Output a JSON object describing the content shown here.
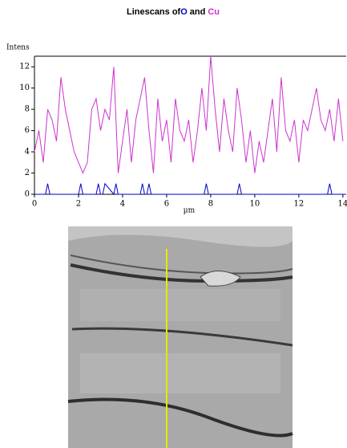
{
  "chart_data": {
    "type": "line",
    "title": "Linescans of",
    "title_conjunction": "and",
    "y_label": "Intens",
    "x_label": "µm",
    "xlim": [
      0,
      14.15
    ],
    "ylim": [
      0,
      13
    ],
    "xticks": [
      0,
      2,
      4,
      6,
      8,
      10,
      12,
      14
    ],
    "yticks": [
      0,
      2,
      4,
      6,
      8,
      10,
      12
    ],
    "series": [
      {
        "name": "O",
        "color": "#0000cc",
        "x": [
          0,
          0.5,
          0.6,
          0.7,
          2.0,
          2.1,
          2.2,
          2.8,
          2.9,
          3.0,
          3.1,
          3.2,
          3.6,
          3.7,
          3.8,
          4.8,
          4.9,
          5.0,
          5.1,
          5.2,
          5.3,
          7.7,
          7.8,
          7.9,
          9.2,
          9.3,
          9.4,
          13.3,
          13.4,
          13.5,
          14.15
        ],
        "values": [
          0,
          0,
          1,
          0,
          0,
          1,
          0,
          0,
          1,
          0,
          0,
          1,
          0,
          1,
          0,
          0,
          1,
          0,
          0,
          1,
          0,
          0,
          1,
          0,
          0,
          1,
          0,
          0,
          1,
          0,
          0
        ]
      },
      {
        "name": "Cu",
        "color": "#cc33cc",
        "x": [
          0,
          0.2,
          0.4,
          0.6,
          0.8,
          1.0,
          1.2,
          1.4,
          1.6,
          1.8,
          2.0,
          2.2,
          2.4,
          2.6,
          2.8,
          3.0,
          3.2,
          3.4,
          3.6,
          3.8,
          4.0,
          4.2,
          4.4,
          4.6,
          4.8,
          5.0,
          5.2,
          5.4,
          5.6,
          5.8,
          6.0,
          6.2,
          6.4,
          6.6,
          6.8,
          7.0,
          7.2,
          7.4,
          7.6,
          7.8,
          8.0,
          8.2,
          8.4,
          8.6,
          8.8,
          9.0,
          9.2,
          9.4,
          9.6,
          9.8,
          10.0,
          10.2,
          10.4,
          10.6,
          10.8,
          11.0,
          11.2,
          11.4,
          11.6,
          11.8,
          12.0,
          12.2,
          12.4,
          12.6,
          12.8,
          13.0,
          13.2,
          13.4,
          13.6,
          13.8,
          14.0
        ],
        "values": [
          4,
          6,
          3,
          8,
          7,
          5,
          11,
          8,
          6,
          4,
          3,
          2,
          3,
          8,
          9,
          6,
          8,
          7,
          12,
          2,
          5,
          8,
          3,
          7,
          9,
          11,
          6,
          2,
          9,
          5,
          7,
          3,
          9,
          6,
          5,
          7,
          3,
          6,
          10,
          6,
          13,
          8,
          4,
          9,
          6,
          4,
          10,
          7,
          3,
          6,
          2,
          5,
          3,
          6,
          9,
          4,
          11,
          6,
          5,
          7,
          3,
          7,
          6,
          8,
          10,
          7,
          6,
          8,
          5,
          9,
          5
        ]
      }
    ]
  }
}
